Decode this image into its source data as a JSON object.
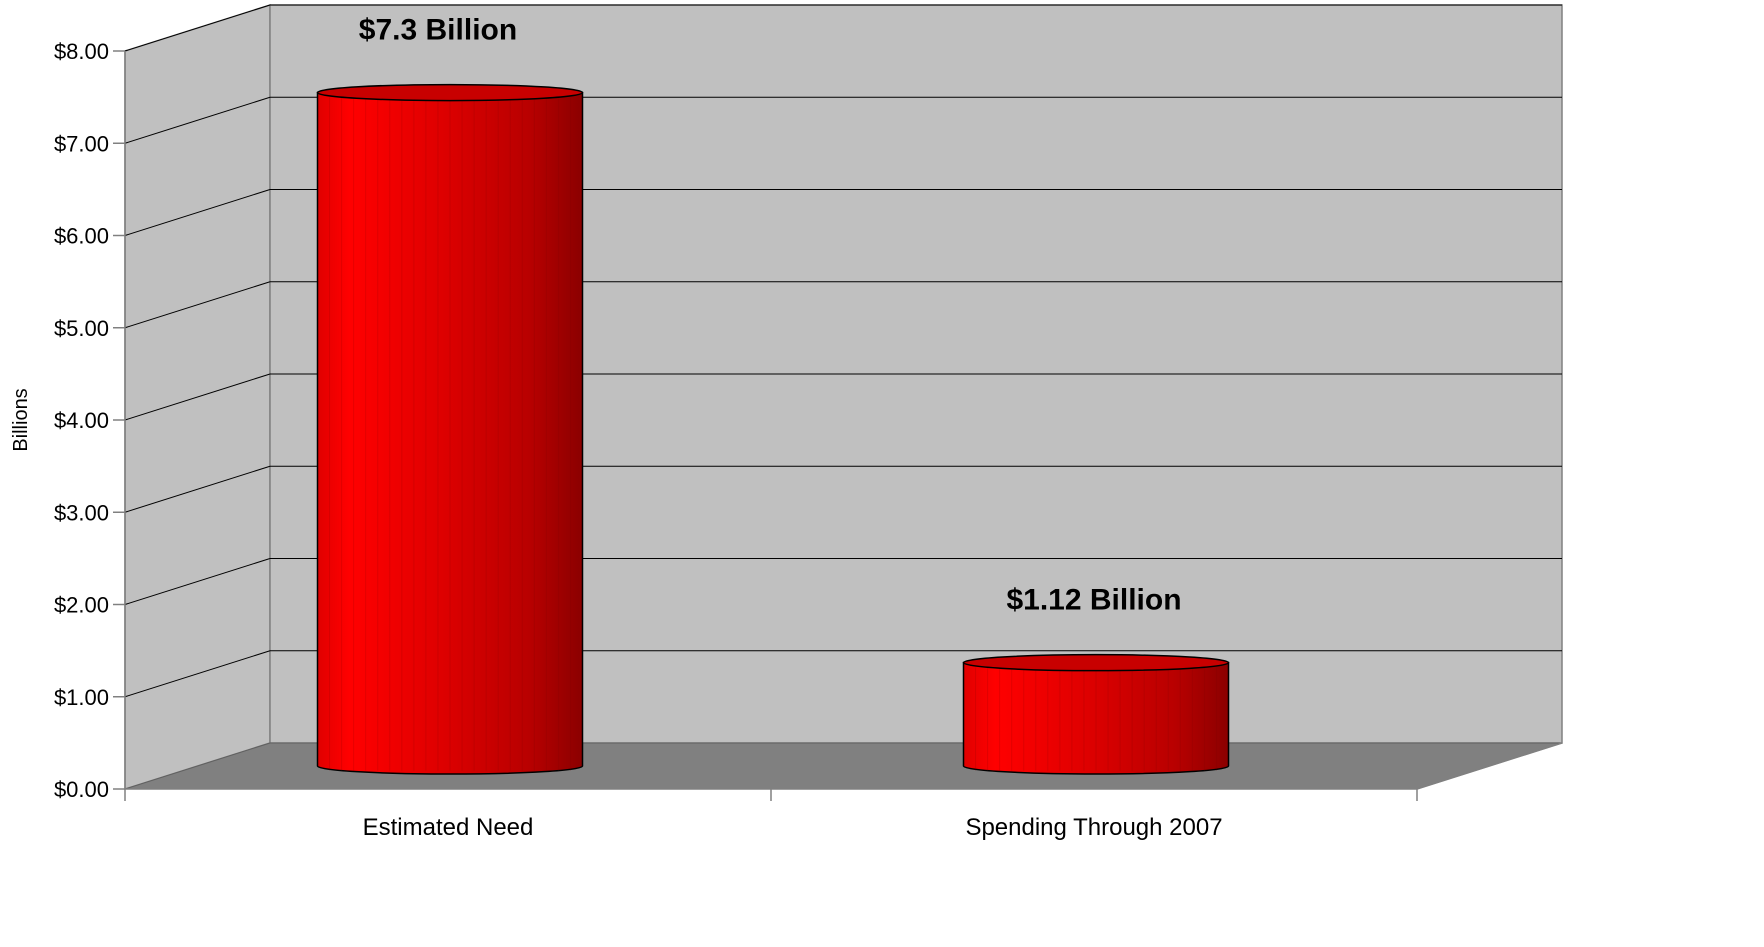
{
  "chart_data": {
    "type": "bar",
    "style": "3d-cylinder",
    "categories": [
      "Estimated Need",
      "Spending Through 2007"
    ],
    "values": [
      7.3,
      1.12
    ],
    "data_labels": [
      "$7.3 Billion",
      "$1.12 Billion"
    ],
    "ylabel": "Billions",
    "xlabel": "",
    "ylim": [
      0,
      8
    ],
    "yticks": [
      {
        "value": 0,
        "label": "$0.00"
      },
      {
        "value": 1,
        "label": "$1.00"
      },
      {
        "value": 2,
        "label": "$2.00"
      },
      {
        "value": 3,
        "label": "$3.00"
      },
      {
        "value": 4,
        "label": "$4.00"
      },
      {
        "value": 5,
        "label": "$5.00"
      },
      {
        "value": 6,
        "label": "$6.00"
      },
      {
        "value": 7,
        "label": "$7.00"
      },
      {
        "value": 8,
        "label": "$8.00"
      }
    ],
    "grid": true,
    "legend": "none",
    "colors": {
      "bar": "#ff0000",
      "bar_dark": "#8b0000",
      "wall": "#c0c0c0",
      "floor": "#808080"
    }
  }
}
